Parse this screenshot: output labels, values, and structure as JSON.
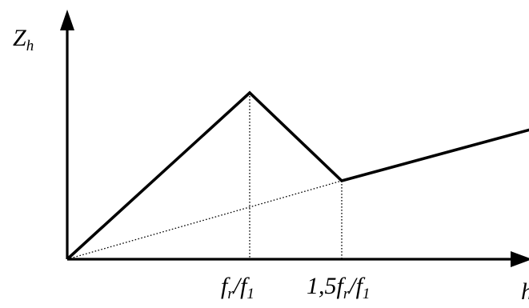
{
  "diagram": {
    "y_axis_label": {
      "main": "Z",
      "sub": "h"
    },
    "x_axis_label": "h",
    "x_ticks": [
      {
        "pre": "f",
        "sub1": "r",
        "mid": "/f",
        "sub2": "1"
      },
      {
        "pre": "1,5f",
        "sub1": "r",
        "mid": "/f",
        "sub2": "1"
      }
    ],
    "line_color": "#000000",
    "background_color": "#ffffff"
  }
}
